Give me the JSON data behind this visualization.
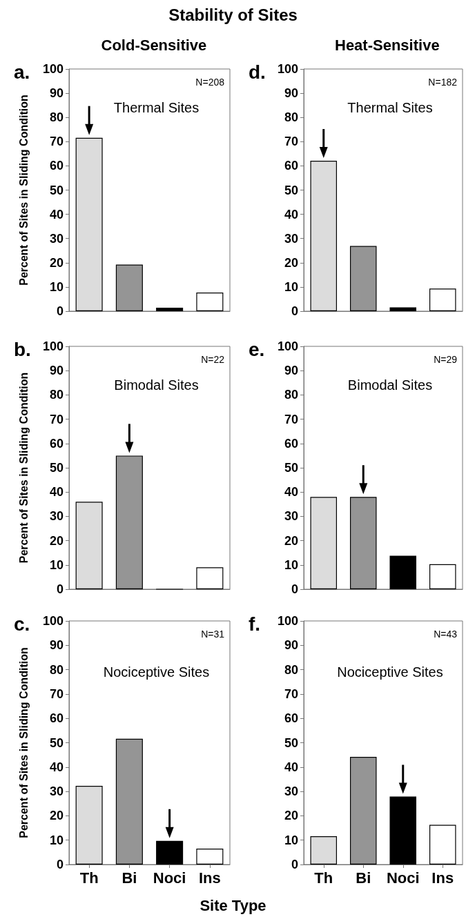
{
  "chart_data": [
    {
      "type": "bar",
      "title": "Stability of Sites",
      "subtitle": "Cold-Sensitive",
      "ylabel": "Percent of Sites in Sliding Condition",
      "categories": [
        null,
        null,
        null,
        null
      ],
      "values": [
        71.6,
        19.2,
        1.4,
        7.7
      ],
      "colors": [
        "#dcdcdc",
        "#959595",
        "#000000",
        "#ffffff"
      ],
      "ylim": [
        0,
        100
      ],
      "yticks": [
        0,
        10,
        20,
        30,
        40,
        50,
        60,
        70,
        80,
        90,
        100
      ],
      "tick_labels": "y",
      "annotations": [
        "a.",
        "N=208",
        "Thermal Sites"
      ]
    },
    {
      "type": "bar",
      "subtitle": "Heat-Sensitive",
      "categories": [
        null,
        null,
        null,
        null
      ],
      "values": [
        62.1,
        26.9,
        1.6,
        9.3
      ],
      "colors": [
        "#dcdcdc",
        "#959595",
        "#000000",
        "#ffffff"
      ],
      "ylim": [
        0,
        100
      ],
      "yticks": [
        0,
        10,
        20,
        30,
        40,
        50,
        60,
        70,
        80,
        90,
        100
      ],
      "tick_labels": "y",
      "annotations": [
        "d.",
        "N=182",
        "Thermal Sites"
      ]
    },
    {
      "type": "bar",
      "ylabel": "Percent of Sites in Sliding Condition",
      "categories": [
        null,
        null,
        null,
        null
      ],
      "values": [
        36,
        55,
        0,
        9
      ],
      "colors": [
        "#dcdcdc",
        "#959595",
        "#000000",
        "#ffffff"
      ],
      "ylim": [
        0,
        100
      ],
      "yticks": [
        0,
        10,
        20,
        30,
        40,
        50,
        60,
        70,
        80,
        90,
        100
      ],
      "tick_labels": "y",
      "annotations": [
        "b.",
        "N=22",
        "Bimodal Sites"
      ]
    },
    {
      "type": "bar",
      "categories": [
        null,
        null,
        null,
        null
      ],
      "values": [
        38,
        38,
        13.8,
        10.3
      ],
      "colors": [
        "#dcdcdc",
        "#959595",
        "#000000",
        "#ffffff"
      ],
      "ylim": [
        0,
        100
      ],
      "yticks": [
        0,
        10,
        20,
        30,
        40,
        50,
        60,
        70,
        80,
        90,
        100
      ],
      "tick_labels": "y",
      "annotations": [
        "e.",
        "N=29",
        "Bimodal Sites"
      ]
    },
    {
      "type": "bar",
      "ylabel": "Percent of Sites in Sliding Condition",
      "xlabel": "Site Type",
      "categories": [
        "Th",
        "Bi",
        "Noci",
        "Ins"
      ],
      "values": [
        32.3,
        51.6,
        9.7,
        6.5
      ],
      "colors": [
        "#dcdcdc",
        "#959595",
        "#000000",
        "#ffffff"
      ],
      "ylim": [
        0,
        100
      ],
      "yticks": [
        0,
        10,
        20,
        30,
        40,
        50,
        60,
        70,
        80,
        90,
        100
      ],
      "annotations": [
        "c.",
        "N=31",
        "Nociceptive Sites"
      ]
    },
    {
      "type": "bar",
      "categories": [
        "Th",
        "Bi",
        "Noci",
        "Ins"
      ],
      "values": [
        11.6,
        44.2,
        27.9,
        16.3
      ],
      "colors": [
        "#dcdcdc",
        "#959595",
        "#000000",
        "#ffffff"
      ],
      "ylim": [
        0,
        100
      ],
      "yticks": [
        0,
        10,
        20,
        30,
        40,
        50,
        60,
        70,
        80,
        90,
        100
      ],
      "annotations": [
        "f.",
        "N=43",
        "Nociceptive Sites"
      ]
    }
  ]
}
